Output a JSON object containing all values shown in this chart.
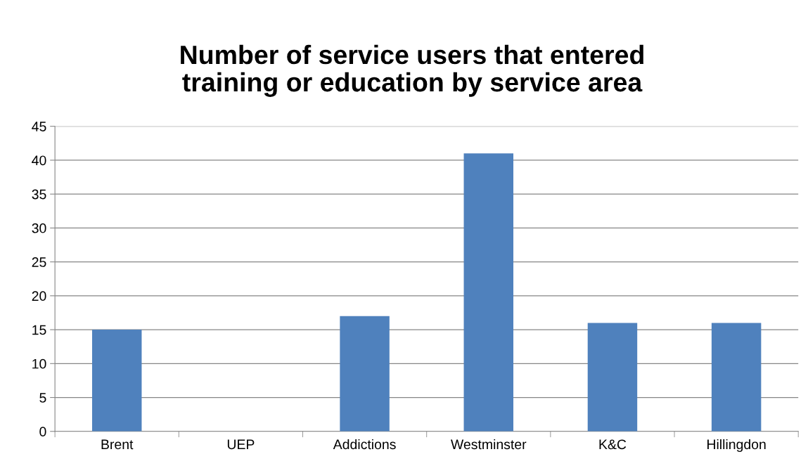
{
  "chart_data": {
    "type": "bar",
    "title": "Number of service users that entered\ntraining or education by service area",
    "categories": [
      "Brent",
      "UEP",
      "Addictions",
      "Westminster",
      "K&C",
      "Hillingdon"
    ],
    "values": [
      15,
      0,
      17,
      41,
      16,
      16
    ],
    "color": "#4f81bd",
    "ylim": [
      0,
      45
    ],
    "yticks": [
      0,
      5,
      10,
      15,
      20,
      25,
      30,
      35,
      40,
      45
    ],
    "grid": "y",
    "legend": false
  }
}
